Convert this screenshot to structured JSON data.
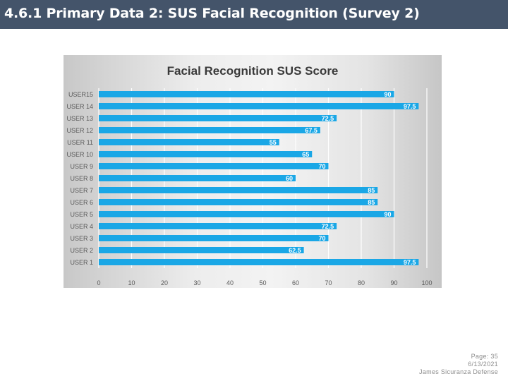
{
  "slide": {
    "title": "4.6.1 Primary Data 2: SUS Facial Recognition (Survey 2)"
  },
  "footer": {
    "page": "Page: 35",
    "date": "6/13/2021",
    "author": "James Sicuranza Defense"
  },
  "colors": {
    "title_bar": "#44546a",
    "bar": "#1aa7e6",
    "bar_label": "#ffffff",
    "grid": "#ffffff",
    "text": "#595959"
  },
  "chart_data": {
    "type": "bar",
    "orientation": "horizontal",
    "title": "Facial Recognition SUS Score",
    "categories": [
      "USER15",
      "USER 14",
      "USER 13",
      "USER 12",
      "USER 11",
      "USER 10",
      "USER 9",
      "USER 8",
      "USER 7",
      "USER 6",
      "USER 5",
      "USER 4",
      "USER 3",
      "USER 2",
      "USER 1"
    ],
    "values": [
      90,
      97.5,
      72.5,
      67.5,
      55,
      65,
      70,
      60,
      85,
      85,
      90,
      72.5,
      70,
      62.5,
      97.5
    ],
    "value_labels": [
      "90",
      "97.5",
      "72.5",
      "67.5",
      "55",
      "65",
      "70",
      "60",
      "85",
      "85",
      "90",
      "72.5",
      "70",
      "62.5",
      "97.5"
    ],
    "xlim": [
      0,
      100
    ],
    "x_ticks": [
      0,
      10,
      20,
      30,
      40,
      50,
      60,
      70,
      80,
      90,
      100
    ],
    "x_tick_labels": [
      "0",
      "10",
      "20",
      "30",
      "40",
      "50",
      "60",
      "70",
      "80",
      "90",
      "100"
    ],
    "xlabel": "",
    "ylabel": "",
    "grid": true,
    "legend": "none",
    "data_labels": "inside-end"
  }
}
